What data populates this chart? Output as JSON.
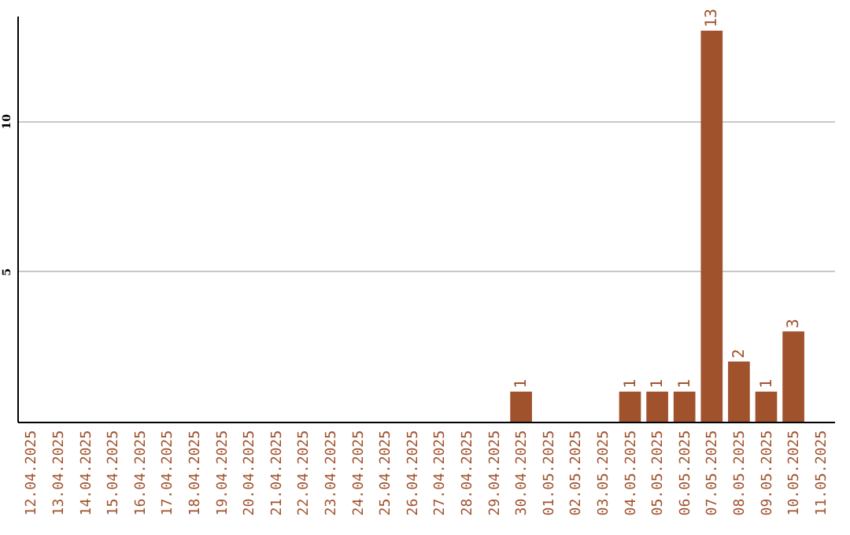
{
  "chart_data": {
    "type": "bar",
    "categories": [
      "12.04.2025",
      "13.04.2025",
      "14.04.2025",
      "15.04.2025",
      "16.04.2025",
      "17.04.2025",
      "18.04.2025",
      "19.04.2025",
      "20.04.2025",
      "21.04.2025",
      "22.04.2025",
      "23.04.2025",
      "24.04.2025",
      "25.04.2025",
      "26.04.2025",
      "27.04.2025",
      "28.04.2025",
      "29.04.2025",
      "30.04.2025",
      "01.05.2025",
      "02.05.2025",
      "03.05.2025",
      "04.05.2025",
      "05.05.2025",
      "06.05.2025",
      "07.05.2025",
      "08.05.2025",
      "09.05.2025",
      "10.05.2025",
      "11.05.2025"
    ],
    "values": [
      0,
      0,
      0,
      0,
      0,
      0,
      0,
      0,
      0,
      0,
      0,
      0,
      0,
      0,
      0,
      0,
      0,
      0,
      1,
      0,
      0,
      0,
      1,
      1,
      1,
      13,
      2,
      1,
      3,
      0
    ],
    "value_labels": [
      null,
      null,
      null,
      null,
      null,
      null,
      null,
      null,
      null,
      null,
      null,
      null,
      null,
      null,
      null,
      null,
      null,
      null,
      "1",
      null,
      null,
      null,
      "1",
      "1",
      "1",
      "13",
      "2",
      "1",
      "3",
      null
    ],
    "color": "#a0522d",
    "ylim": [
      0,
      13.5
    ],
    "yticks": [
      5,
      10
    ],
    "grid": "y"
  }
}
